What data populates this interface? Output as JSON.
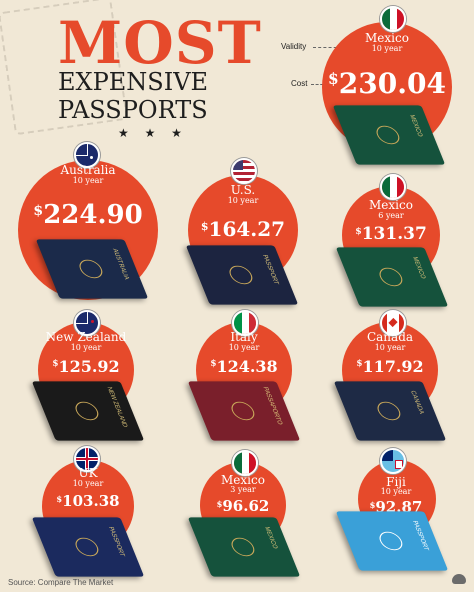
{
  "title": {
    "main": "MOST",
    "sub": "EXPENSIVE PASSPORTS",
    "stars": "★ ★ ★"
  },
  "legend": {
    "validity_label": "Validity",
    "cost_label": "Cost"
  },
  "featured": {
    "country": "Mexico",
    "validity": "10 year",
    "cost": "230.04",
    "currency": "$",
    "flag": "mexico-flag",
    "color": "#15523c",
    "cover_text": "MEXICO"
  },
  "cards": [
    {
      "country": "Australia",
      "validity": "10 year",
      "cost": "224.90",
      "currency": "$",
      "flag": "australia-flag",
      "color": "#1b2a4a",
      "cover_text": "AUSTRALIA"
    },
    {
      "country": "U.S.",
      "validity": "10 year",
      "cost": "164.27",
      "currency": "$",
      "flag": "us-flag",
      "color": "#1c2440",
      "cover_text": "PASSPORT"
    },
    {
      "country": "Mexico",
      "validity": "6 year",
      "cost": "131.37",
      "currency": "$",
      "flag": "mexico-flag",
      "color": "#15523c",
      "cover_text": "MEXICO"
    },
    {
      "country": "New Zealand",
      "validity": "10 year",
      "cost": "125.92",
      "currency": "$",
      "flag": "new-zealand-flag",
      "color": "#1a1a1a",
      "cover_text": "NEW ZEALAND"
    },
    {
      "country": "Italy",
      "validity": "10 year",
      "cost": "124.38",
      "currency": "$",
      "flag": "italy-flag",
      "color": "#7a1f2b",
      "cover_text": "PASSAPORTO"
    },
    {
      "country": "Canada",
      "validity": "10 year",
      "cost": "117.92",
      "currency": "$",
      "flag": "canada-flag",
      "color": "#1e2a45",
      "cover_text": "CANADA"
    },
    {
      "country": "UK",
      "validity": "10 year",
      "cost": "103.38",
      "currency": "$",
      "flag": "uk-flag",
      "color": "#1b2a5e",
      "cover_text": "PASSPORT"
    },
    {
      "country": "Mexico",
      "validity": "3 year",
      "cost": "96.62",
      "currency": "$",
      "flag": "mexico-flag",
      "color": "#15523c",
      "cover_text": "MEXICO"
    },
    {
      "country": "Fiji",
      "validity": "10 year",
      "cost": "92.87",
      "currency": "$",
      "flag": "fiji-flag",
      "color": "#3aa0d8",
      "cover_text": "PASSPORT"
    }
  ],
  "source": "Source: Compare The Market",
  "colors": {
    "accent": "#e64a2b",
    "background": "#f1e8d6",
    "text": "#1e1e1e"
  }
}
